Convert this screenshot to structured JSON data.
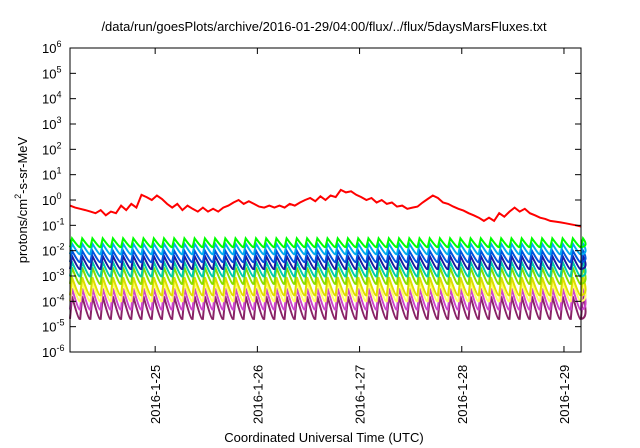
{
  "chart_data": {
    "type": "line",
    "title": "/data/run/goesPlots/archive/2016-01-29/04:00/flux/../flux/5daysMarsFluxes.txt",
    "xlabel": "Coordinated Universal Time (UTC)",
    "ylabel": {
      "pre": "protons/cm",
      "sup": "2",
      "post": "-s-sr-MeV"
    },
    "y_scale": "log",
    "ylim": [
      1e-06,
      1000000.0
    ],
    "xlim": [
      "2016-01-24T04:00",
      "2016-01-29T04:00"
    ],
    "grid": false,
    "legend": "none",
    "y_ticks": [
      {
        "base": "10",
        "exp": "-6"
      },
      {
        "base": "10",
        "exp": "-5"
      },
      {
        "base": "10",
        "exp": "-4"
      },
      {
        "base": "10",
        "exp": "-3"
      },
      {
        "base": "10",
        "exp": "-2"
      },
      {
        "base": "10",
        "exp": "-1"
      },
      {
        "base": "10",
        "exp": "0"
      },
      {
        "base": "10",
        "exp": "1"
      },
      {
        "base": "10",
        "exp": "2"
      },
      {
        "base": "10",
        "exp": "3"
      },
      {
        "base": "10",
        "exp": "4"
      },
      {
        "base": "10",
        "exp": "5"
      },
      {
        "base": "10",
        "exp": "6"
      }
    ],
    "x_ticks": [
      "2016-1-25",
      "2016-1-26",
      "2016-1-27",
      "2016-1-28",
      "2016-1-29"
    ],
    "red_series": {
      "color": "#ff0000",
      "x_days": [
        0.0,
        0.05,
        0.1,
        0.15,
        0.2,
        0.25,
        0.3,
        0.35,
        0.4,
        0.45,
        0.5,
        0.55,
        0.6,
        0.65,
        0.7,
        0.75,
        0.8,
        0.85,
        0.9,
        0.95,
        1.0,
        1.05,
        1.1,
        1.15,
        1.2,
        1.25,
        1.3,
        1.35,
        1.4,
        1.45,
        1.5,
        1.55,
        1.6,
        1.65,
        1.7,
        1.75,
        1.8,
        1.85,
        1.9,
        1.95,
        2.0,
        2.05,
        2.1,
        2.15,
        2.2,
        2.25,
        2.3,
        2.35,
        2.4,
        2.45,
        2.5,
        2.55,
        2.6,
        2.65,
        2.7,
        2.75,
        2.8,
        2.85,
        2.9,
        2.95,
        3.0,
        3.05,
        3.1,
        3.15,
        3.2,
        3.25,
        3.3,
        3.35,
        3.4,
        3.45,
        3.5,
        3.55,
        3.6,
        3.65,
        3.7,
        3.75,
        3.8,
        3.85,
        3.9,
        3.95,
        4.0,
        4.05,
        4.1,
        4.15,
        4.2,
        4.25,
        4.3,
        4.35,
        4.4,
        4.45,
        4.5,
        4.55,
        4.6,
        4.65,
        4.7,
        4.75,
        4.8,
        4.85,
        4.9,
        4.95,
        5.0
      ],
      "y": [
        0.6,
        0.5,
        0.45,
        0.4,
        0.35,
        0.3,
        0.4,
        0.25,
        0.35,
        0.3,
        0.6,
        0.4,
        0.7,
        0.5,
        1.6,
        1.3,
        1.0,
        1.5,
        1.1,
        0.7,
        0.5,
        0.7,
        0.4,
        0.6,
        0.45,
        0.35,
        0.5,
        0.35,
        0.45,
        0.35,
        0.5,
        0.6,
        0.8,
        1.0,
        0.7,
        0.9,
        0.7,
        0.55,
        0.5,
        0.6,
        0.5,
        0.6,
        0.5,
        0.7,
        0.6,
        0.8,
        1.0,
        1.2,
        0.9,
        1.4,
        1.0,
        1.5,
        1.3,
        2.5,
        2.0,
        2.2,
        1.6,
        1.3,
        1.0,
        1.2,
        0.8,
        1.0,
        0.7,
        0.8,
        0.55,
        0.6,
        0.45,
        0.5,
        0.55,
        0.8,
        1.1,
        1.5,
        1.2,
        0.8,
        0.7,
        0.55,
        0.45,
        0.38,
        0.3,
        0.25,
        0.2,
        0.15,
        0.2,
        0.15,
        0.3,
        0.22,
        0.35,
        0.5,
        0.35,
        0.45,
        0.3,
        0.25,
        0.2,
        0.18,
        0.15,
        0.14,
        0.13,
        0.12,
        0.11,
        0.1,
        0.09
      ]
    },
    "sawtooth_series": [
      {
        "color": "#00ff00",
        "base": 0.018,
        "amp": 1.7
      },
      {
        "color": "#00aaee",
        "base": 0.01,
        "amp": 1.9
      },
      {
        "color": "#0055dd",
        "base": 0.005,
        "amp": 2.0
      },
      {
        "color": "#1a1aa0",
        "base": 0.0028,
        "amp": 2.2
      },
      {
        "color": "#00ccaa",
        "base": 0.0015,
        "amp": 2.4
      },
      {
        "color": "#88dd00",
        "base": 0.0008,
        "amp": 2.7
      },
      {
        "color": "#dddd00",
        "base": 0.0003,
        "amp": 3.0
      },
      {
        "color": "#ffff66",
        "base": 0.00018,
        "amp": 3.2
      },
      {
        "color": "#cc44cc",
        "base": 9e-05,
        "amp": 3.6
      },
      {
        "color": "#882266",
        "base": 4e-05,
        "amp": 3.9
      }
    ],
    "sawtooth_period_days": 0.1
  }
}
